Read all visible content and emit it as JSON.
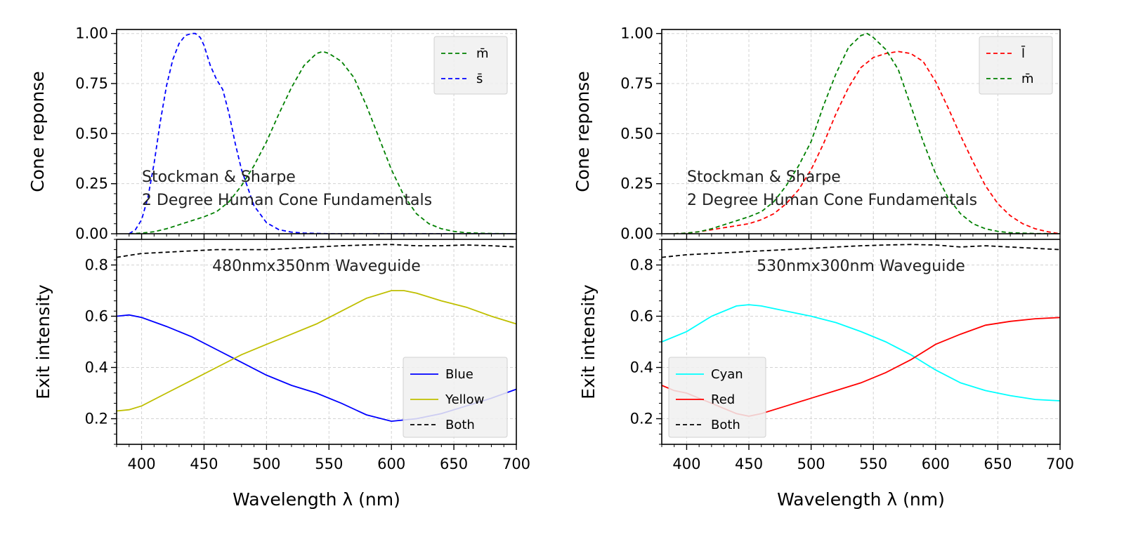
{
  "chart_data": [
    {
      "type": "line",
      "panel": "left-top",
      "annotation": [
        "Stockman & Sharpe",
        "2 Degree Human Cone Fundamentals"
      ],
      "ylabel": "Cone reponse",
      "xlim": [
        380,
        700
      ],
      "ylim": [
        0,
        1.02
      ],
      "yticks": [
        0.0,
        0.25,
        0.5,
        0.75,
        1.0
      ],
      "ytick_labels": [
        "0.00",
        "0.25",
        "0.50",
        "0.75",
        "1.00"
      ],
      "legend_position": "upper right",
      "grid": true,
      "series": [
        {
          "name": "m̄",
          "color": "#008000",
          "style": "dashed",
          "x": [
            390,
            400,
            410,
            420,
            430,
            440,
            450,
            460,
            470,
            480,
            490,
            500,
            510,
            520,
            530,
            540,
            545,
            550,
            560,
            570,
            580,
            590,
            600,
            610,
            620,
            630,
            640,
            650,
            660,
            680,
            700
          ],
          "y": [
            0.0,
            0.003,
            0.01,
            0.025,
            0.045,
            0.065,
            0.085,
            0.11,
            0.16,
            0.24,
            0.34,
            0.46,
            0.6,
            0.73,
            0.84,
            0.9,
            0.91,
            0.9,
            0.86,
            0.78,
            0.64,
            0.48,
            0.32,
            0.19,
            0.1,
            0.05,
            0.025,
            0.012,
            0.005,
            0.001,
            0.0
          ]
        },
        {
          "name": "s̄",
          "color": "#0000ff",
          "style": "dashed",
          "x": [
            390,
            395,
            400,
            405,
            410,
            415,
            420,
            425,
            430,
            435,
            440,
            443,
            447,
            450,
            455,
            460,
            465,
            470,
            475,
            480,
            490,
            500,
            510,
            520,
            530,
            550,
            600,
            700
          ],
          "y": [
            0.0,
            0.02,
            0.07,
            0.18,
            0.35,
            0.56,
            0.74,
            0.87,
            0.95,
            0.99,
            1.0,
            1.0,
            0.98,
            0.94,
            0.84,
            0.77,
            0.72,
            0.6,
            0.45,
            0.32,
            0.14,
            0.055,
            0.02,
            0.008,
            0.003,
            0.0,
            0.0,
            0.0
          ]
        }
      ]
    },
    {
      "type": "line",
      "panel": "left-bottom",
      "annotation": [
        "480nmx350nm Waveguide"
      ],
      "xlabel": "Wavelength λ (nm)",
      "ylabel": "Exit intensity",
      "xlim": [
        380,
        700
      ],
      "ylim": [
        0.1,
        0.9
      ],
      "xticks": [
        400,
        450,
        500,
        550,
        600,
        650,
        700
      ],
      "yticks": [
        0.2,
        0.4,
        0.6,
        0.8
      ],
      "ytick_labels": [
        "0.2",
        "0.4",
        "0.6",
        "0.8"
      ],
      "legend_position": "lower right",
      "grid": true,
      "series": [
        {
          "name": "Blue",
          "color": "#0000ff",
          "style": "solid",
          "x": [
            380,
            390,
            400,
            420,
            440,
            460,
            480,
            500,
            520,
            540,
            560,
            580,
            600,
            620,
            640,
            660,
            680,
            700
          ],
          "y": [
            0.6,
            0.605,
            0.595,
            0.56,
            0.52,
            0.47,
            0.42,
            0.37,
            0.33,
            0.3,
            0.26,
            0.215,
            0.19,
            0.2,
            0.22,
            0.25,
            0.28,
            0.315
          ]
        },
        {
          "name": "Yellow",
          "color": "#bfbf00",
          "style": "solid",
          "x": [
            380,
            390,
            400,
            420,
            440,
            460,
            480,
            500,
            520,
            540,
            560,
            580,
            600,
            610,
            620,
            640,
            660,
            680,
            700
          ],
          "y": [
            0.23,
            0.235,
            0.25,
            0.3,
            0.35,
            0.4,
            0.45,
            0.49,
            0.53,
            0.57,
            0.62,
            0.67,
            0.7,
            0.7,
            0.69,
            0.66,
            0.635,
            0.6,
            0.57
          ]
        },
        {
          "name": "Both",
          "color": "#000000",
          "style": "dashed",
          "x": [
            380,
            400,
            420,
            440,
            460,
            480,
            500,
            520,
            540,
            560,
            580,
            600,
            620,
            640,
            660,
            680,
            700
          ],
          "y": [
            0.83,
            0.845,
            0.85,
            0.855,
            0.86,
            0.86,
            0.86,
            0.865,
            0.87,
            0.875,
            0.878,
            0.88,
            0.875,
            0.875,
            0.878,
            0.875,
            0.87
          ]
        }
      ]
    },
    {
      "type": "line",
      "panel": "right-top",
      "annotation": [
        "Stockman & Sharpe",
        "2 Degree Human Cone Fundamentals"
      ],
      "ylabel": "Cone reponse",
      "xlim": [
        380,
        700
      ],
      "ylim": [
        0,
        1.02
      ],
      "yticks": [
        0.0,
        0.25,
        0.5,
        0.75,
        1.0
      ],
      "ytick_labels": [
        "0.00",
        "0.25",
        "0.50",
        "0.75",
        "1.00"
      ],
      "legend_position": "upper right",
      "grid": true,
      "series": [
        {
          "name": "l̄",
          "color": "#ff0000",
          "style": "dashed",
          "x": [
            390,
            400,
            410,
            420,
            430,
            440,
            450,
            460,
            470,
            480,
            490,
            500,
            510,
            520,
            530,
            540,
            550,
            560,
            570,
            580,
            590,
            600,
            610,
            620,
            630,
            640,
            650,
            660,
            670,
            680,
            690,
            700
          ],
          "y": [
            0.0,
            0.003,
            0.01,
            0.02,
            0.03,
            0.04,
            0.05,
            0.07,
            0.1,
            0.15,
            0.22,
            0.32,
            0.45,
            0.6,
            0.73,
            0.83,
            0.88,
            0.9,
            0.91,
            0.9,
            0.86,
            0.76,
            0.63,
            0.49,
            0.36,
            0.24,
            0.15,
            0.09,
            0.05,
            0.025,
            0.01,
            0.0
          ]
        },
        {
          "name": "m̄",
          "color": "#008000",
          "style": "dashed",
          "x": [
            390,
            400,
            410,
            420,
            430,
            440,
            450,
            460,
            470,
            480,
            490,
            500,
            510,
            520,
            530,
            540,
            545,
            550,
            560,
            570,
            580,
            590,
            600,
            610,
            620,
            630,
            640,
            650,
            660,
            680,
            700
          ],
          "y": [
            0.0,
            0.003,
            0.01,
            0.025,
            0.045,
            0.065,
            0.085,
            0.11,
            0.16,
            0.24,
            0.34,
            0.46,
            0.64,
            0.8,
            0.93,
            0.99,
            1.0,
            0.98,
            0.92,
            0.82,
            0.64,
            0.46,
            0.3,
            0.18,
            0.1,
            0.05,
            0.025,
            0.012,
            0.005,
            0.001,
            0.0
          ]
        }
      ]
    },
    {
      "type": "line",
      "panel": "right-bottom",
      "annotation": [
        "530nmx300nm Waveguide"
      ],
      "xlabel": "Wavelength λ (nm)",
      "ylabel": "Exit intensity",
      "xlim": [
        380,
        700
      ],
      "ylim": [
        0.1,
        0.9
      ],
      "xticks": [
        400,
        450,
        500,
        550,
        600,
        650,
        700
      ],
      "yticks": [
        0.2,
        0.4,
        0.6,
        0.8
      ],
      "ytick_labels": [
        "0.2",
        "0.4",
        "0.6",
        "0.8"
      ],
      "legend_position": "lower left",
      "grid": true,
      "series": [
        {
          "name": "Cyan",
          "color": "#00ffff",
          "style": "solid",
          "x": [
            380,
            400,
            420,
            440,
            450,
            460,
            480,
            500,
            520,
            540,
            560,
            580,
            600,
            620,
            640,
            660,
            680,
            700
          ],
          "y": [
            0.5,
            0.54,
            0.6,
            0.64,
            0.645,
            0.64,
            0.62,
            0.6,
            0.575,
            0.54,
            0.5,
            0.45,
            0.39,
            0.34,
            0.31,
            0.29,
            0.275,
            0.27
          ]
        },
        {
          "name": "Red",
          "color": "#ff0000",
          "style": "solid",
          "x": [
            380,
            390,
            400,
            420,
            440,
            450,
            460,
            480,
            500,
            520,
            540,
            560,
            580,
            600,
            620,
            640,
            660,
            680,
            700
          ],
          "y": [
            0.33,
            0.31,
            0.3,
            0.26,
            0.22,
            0.21,
            0.22,
            0.25,
            0.28,
            0.31,
            0.34,
            0.38,
            0.43,
            0.49,
            0.53,
            0.565,
            0.58,
            0.59,
            0.595
          ]
        },
        {
          "name": "Both",
          "color": "#000000",
          "style": "dashed",
          "x": [
            380,
            400,
            420,
            440,
            460,
            480,
            500,
            520,
            540,
            560,
            580,
            600,
            620,
            640,
            660,
            680,
            700
          ],
          "y": [
            0.83,
            0.84,
            0.845,
            0.85,
            0.855,
            0.86,
            0.865,
            0.87,
            0.875,
            0.878,
            0.88,
            0.878,
            0.87,
            0.875,
            0.87,
            0.865,
            0.86
          ]
        }
      ]
    }
  ],
  "shared_x": {
    "xticks": [
      400,
      450,
      500,
      550,
      600,
      650,
      700
    ],
    "xtick_labels": [
      "400",
      "450",
      "500",
      "550",
      "600",
      "650",
      "700"
    ],
    "xlabel": "Wavelength λ (nm)"
  }
}
